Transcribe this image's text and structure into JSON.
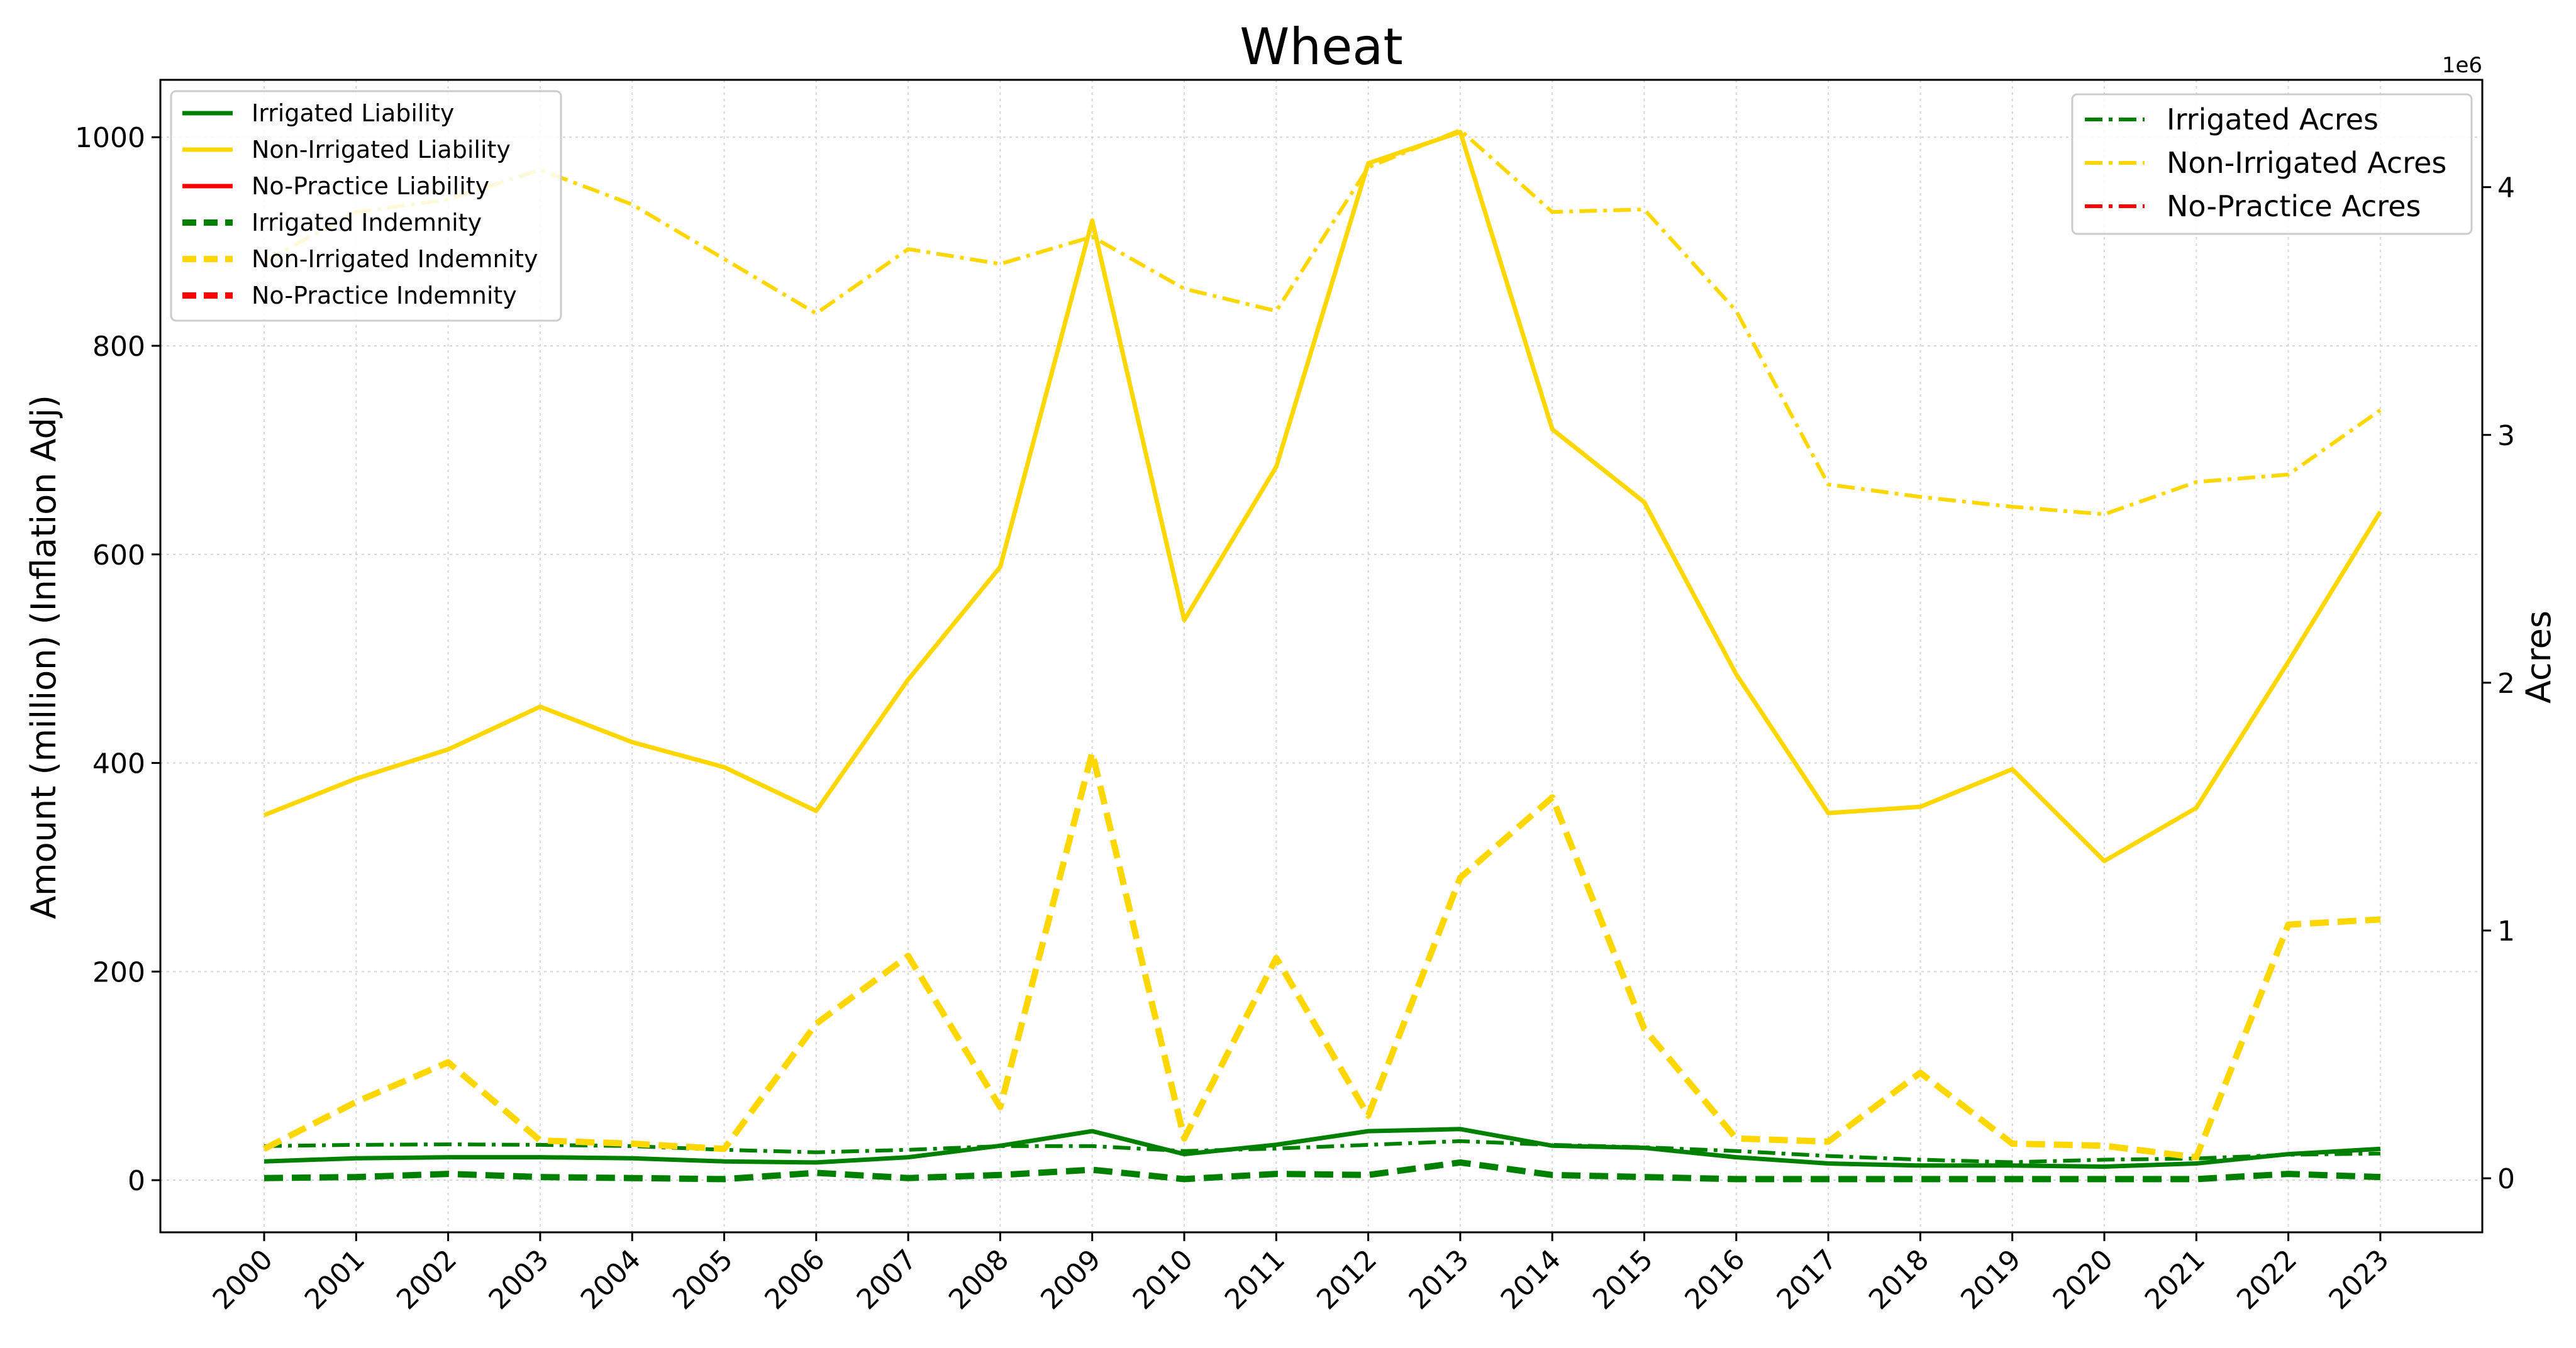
{
  "chart_data": {
    "type": "line",
    "title": "Wheat",
    "ylabel": "Amount (million) (Inflation Adj)",
    "ylabel_right": "Acres",
    "right_axis_multiplier": "1e6",
    "x": [
      "2000",
      "2001",
      "2002",
      "2003",
      "2004",
      "2005",
      "2006",
      "2007",
      "2008",
      "2009",
      "2010",
      "2011",
      "2012",
      "2013",
      "2014",
      "2015",
      "2016",
      "2017",
      "2018",
      "2019",
      "2020",
      "2021",
      "2022",
      "2023"
    ],
    "ylim": [
      -50,
      1055
    ],
    "ylim_right": [
      -218000,
      4433000
    ],
    "yticks": [
      "0",
      "200",
      "400",
      "600",
      "800",
      "1000"
    ],
    "yticks_right": [
      "0",
      "1",
      "2",
      "3",
      "4"
    ],
    "grid": true,
    "legend_left_placement": "top-left",
    "legend_right_placement": "top-right",
    "colors": {
      "irrigated": "#008000",
      "non_irrigated": "#FFD700",
      "no_practice": "#FF0000"
    },
    "series_left": [
      {
        "name": "Irrigated Liability",
        "color": "#008000",
        "style": "solid",
        "values": [
          18,
          21,
          22,
          22,
          21,
          18,
          17,
          22,
          33,
          47,
          25,
          34,
          47,
          49,
          33,
          31,
          22,
          16,
          14,
          14,
          13,
          16,
          25,
          30
        ]
      },
      {
        "name": "Non-Irrigated Liability",
        "color": "#FFD700",
        "style": "solid",
        "values": [
          350,
          385,
          413,
          454,
          420,
          396,
          354,
          480,
          588,
          920,
          537,
          684,
          975,
          1005,
          720,
          650,
          485,
          352,
          358,
          394,
          306,
          357,
          497,
          641
        ]
      },
      {
        "name": "No-Practice Liability",
        "color": "#FF0000",
        "style": "solid",
        "values": []
      },
      {
        "name": "Irrigated Indemnity",
        "color": "#008000",
        "style": "dashed",
        "values": [
          2,
          3,
          6,
          3,
          2,
          1,
          7,
          2,
          5,
          10,
          1,
          6,
          5,
          17,
          5,
          3,
          1,
          1,
          1,
          1,
          1,
          1,
          6,
          3
        ]
      },
      {
        "name": "Non-Irrigated Indemnity",
        "color": "#FFD700",
        "style": "dashed",
        "values": [
          30,
          75,
          113,
          38,
          35,
          30,
          150,
          215,
          70,
          410,
          40,
          213,
          62,
          290,
          367,
          145,
          40,
          37,
          103,
          35,
          33,
          22,
          245,
          250
        ]
      },
      {
        "name": "No-Practice Indemnity",
        "color": "#FF0000",
        "style": "dashed",
        "values": []
      }
    ],
    "series_right": [
      {
        "name": "Irrigated Acres",
        "color": "#008000",
        "style": "dashdot",
        "values": [
          130000,
          135000,
          137000,
          135000,
          130000,
          115000,
          105000,
          115000,
          130000,
          130000,
          110000,
          120000,
          135000,
          150000,
          135000,
          125000,
          110000,
          90000,
          75000,
          65000,
          75000,
          80000,
          95000,
          100000
        ]
      },
      {
        "name": "Non-Irrigated Acres",
        "color": "#FFD700",
        "style": "dashdot",
        "values": [
          3700000,
          3900000,
          3950000,
          4070000,
          3930000,
          3710000,
          3490000,
          3750000,
          3690000,
          3800000,
          3590000,
          3500000,
          4080000,
          4230000,
          3900000,
          3910000,
          3500000,
          2800000,
          2750000,
          2710000,
          2680000,
          2810000,
          2840000,
          3100000
        ]
      },
      {
        "name": "No-Practice Acres",
        "color": "#FF0000",
        "style": "dashdot",
        "values": []
      }
    ]
  }
}
